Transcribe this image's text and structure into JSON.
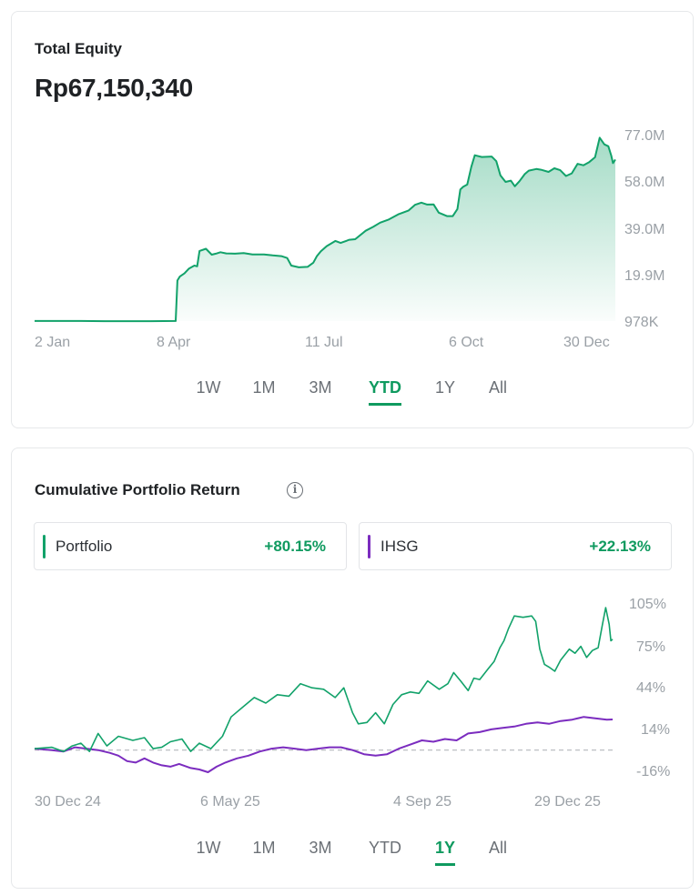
{
  "equity_card": {
    "title": "Total Equity",
    "value": "Rp67,150,340",
    "tabs": [
      "1W",
      "1M",
      "3M",
      "YTD",
      "1Y",
      "All"
    ],
    "active_tab": "YTD"
  },
  "return_card": {
    "title": "Cumulative Portfolio Return",
    "info_icon": "info-icon",
    "legend": [
      {
        "name": "Portfolio",
        "value": "+80.15%",
        "color": "#12a26a"
      },
      {
        "name": "IHSG",
        "value": "+22.13%",
        "color": "#7b2cbf"
      }
    ],
    "tabs": [
      "1W",
      "1M",
      "3M",
      "YTD",
      "1Y",
      "All"
    ],
    "active_tab": "1Y"
  },
  "colors": {
    "accent": "#0f9a5f",
    "line_green": "#12a26a",
    "ihsg_purple": "#7b2cbf"
  },
  "chart_data": [
    {
      "type": "area",
      "title": "Total Equity",
      "x_ticks": [
        "2 Jan",
        "8 Apr",
        "11 Jul",
        "6 Oct",
        "30 Dec"
      ],
      "y_ticks": [
        "77.0M",
        "58.0M",
        "39.0M",
        "19.9M",
        "978K"
      ],
      "y_unit": "Rp",
      "ylim": [
        978000,
        77000000
      ],
      "x_range": [
        0,
        100
      ],
      "tick_positions": [
        0,
        25.2,
        46.6,
        74.1,
        100
      ],
      "series": [
        {
          "values": [
            [
              0,
              1.0
            ],
            [
              4,
              1.0
            ],
            [
              8,
              1.0
            ],
            [
              12,
              0.95
            ],
            [
              16,
              0.95
            ],
            [
              20,
              0.95
            ],
            [
              24.3,
              1.0
            ],
            [
              24.6,
              17.6
            ],
            [
              25,
              19.2
            ],
            [
              25.8,
              20.5
            ],
            [
              26.6,
              22.5
            ],
            [
              27.5,
              23.7
            ],
            [
              28,
              23.4
            ],
            [
              28.4,
              29.7
            ],
            [
              29.5,
              30.6
            ],
            [
              30.5,
              28.2
            ],
            [
              31.2,
              28.6
            ],
            [
              32,
              29.2
            ],
            [
              33,
              28.7
            ],
            [
              34.5,
              28.6
            ],
            [
              36,
              28.8
            ],
            [
              37.5,
              28.3
            ],
            [
              39.5,
              28.3
            ],
            [
              41,
              27.9
            ],
            [
              42.5,
              27.6
            ],
            [
              43.5,
              26.8
            ],
            [
              44.2,
              23.7
            ],
            [
              45.5,
              23.0
            ],
            [
              47,
              23.2
            ],
            [
              48,
              24.9
            ],
            [
              48.6,
              27.6
            ],
            [
              49.3,
              29.6
            ],
            [
              50.3,
              31.7
            ],
            [
              51.8,
              33.8
            ],
            [
              52.7,
              33.0
            ],
            [
              54.2,
              34.3
            ],
            [
              55.2,
              34.5
            ],
            [
              57,
              38.0
            ],
            [
              58.3,
              39.6
            ],
            [
              59.5,
              41.3
            ],
            [
              61,
              42.6
            ],
            [
              62.6,
              44.7
            ],
            [
              64.4,
              46.3
            ],
            [
              65.5,
              48.6
            ],
            [
              66.6,
              49.5
            ],
            [
              67.6,
              48.7
            ],
            [
              68.7,
              48.8
            ],
            [
              69.6,
              45.4
            ],
            [
              71,
              44.0
            ],
            [
              72,
              44.0
            ],
            [
              72.8,
              46.9
            ],
            [
              73.3,
              54.9
            ],
            [
              73.8,
              56.0
            ],
            [
              74.5,
              56.9
            ],
            [
              75.2,
              64.2
            ],
            [
              75.8,
              68.9
            ],
            [
              77,
              68.2
            ],
            [
              78.7,
              68.4
            ],
            [
              79.5,
              66.5
            ],
            [
              80.2,
              60.7
            ],
            [
              81.1,
              58.0
            ],
            [
              82,
              58.5
            ],
            [
              82.7,
              56.2
            ],
            [
              83.5,
              58.3
            ],
            [
              84.4,
              61.2
            ],
            [
              85.1,
              62.6
            ],
            [
              86.4,
              63.3
            ],
            [
              87.2,
              63.0
            ],
            [
              88.5,
              62.1
            ],
            [
              89.5,
              63.6
            ],
            [
              90.5,
              62.8
            ],
            [
              91.5,
              60.4
            ],
            [
              92.5,
              61.5
            ],
            [
              93.5,
              65.4
            ],
            [
              94.5,
              64.8
            ],
            [
              95.5,
              66.1
            ],
            [
              96.5,
              68.1
            ],
            [
              97.3,
              76.1
            ],
            [
              98.1,
              73.4
            ],
            [
              98.8,
              72.6
            ],
            [
              99.3,
              68.8
            ],
            [
              99.6,
              65.7
            ],
            [
              100,
              67.15
            ]
          ]
        }
      ]
    },
    {
      "type": "line",
      "title": "Cumulative Portfolio Return",
      "x_ticks": [
        "30 Dec 24",
        "6 May 25",
        "4 Sep 25",
        "29 Dec 25"
      ],
      "y_ticks": [
        "105%",
        "75%",
        "44%",
        "14%",
        "-16%"
      ],
      "y_unit": "%",
      "ylim": [
        -16,
        105
      ],
      "x_range": [
        0,
        100
      ],
      "tick_positions": [
        0,
        34.4,
        67.3,
        100
      ],
      "zero_baseline": 0,
      "series": [
        {
          "name": "Portfolio",
          "color": "#12a26a",
          "values": [
            [
              0,
              1
            ],
            [
              3,
              2
            ],
            [
              5,
              -1
            ],
            [
              6.5,
              3
            ],
            [
              8,
              5
            ],
            [
              9.5,
              -1
            ],
            [
              11,
              12
            ],
            [
              12.5,
              3
            ],
            [
              14.5,
              10
            ],
            [
              17,
              7
            ],
            [
              19,
              9
            ],
            [
              20.5,
              1
            ],
            [
              22,
              2
            ],
            [
              23.5,
              6
            ],
            [
              25.5,
              8
            ],
            [
              27,
              -1
            ],
            [
              28.5,
              5
            ],
            [
              30.5,
              1
            ],
            [
              32.5,
              10
            ],
            [
              34,
              24
            ],
            [
              36,
              31
            ],
            [
              38,
              38
            ],
            [
              40,
              34
            ],
            [
              42,
              40
            ],
            [
              44,
              39
            ],
            [
              46,
              48
            ],
            [
              48,
              45
            ],
            [
              50,
              44
            ],
            [
              52,
              38
            ],
            [
              53.5,
              45
            ],
            [
              55,
              27
            ],
            [
              56,
              19
            ],
            [
              57.5,
              20
            ],
            [
              59,
              27
            ],
            [
              60.5,
              19
            ],
            [
              62,
              33
            ],
            [
              63.5,
              40
            ],
            [
              65,
              42
            ],
            [
              66.5,
              41
            ],
            [
              68,
              50
            ],
            [
              70,
              44
            ],
            [
              71.5,
              48
            ],
            [
              72.5,
              56
            ],
            [
              73.7,
              50
            ],
            [
              75,
              43
            ],
            [
              76,
              52
            ],
            [
              77,
              51
            ],
            [
              78.5,
              59
            ],
            [
              79.5,
              64
            ],
            [
              80.5,
              74
            ],
            [
              81.2,
              79
            ],
            [
              82,
              88
            ],
            [
              83,
              97
            ],
            [
              84.5,
              96
            ],
            [
              86,
              97
            ],
            [
              86.7,
              93
            ],
            [
              87.4,
              73
            ],
            [
              88.2,
              62
            ],
            [
              89,
              60
            ],
            [
              90,
              57
            ],
            [
              91,
              65
            ],
            [
              92.5,
              73
            ],
            [
              93.5,
              70
            ],
            [
              94.5,
              75
            ],
            [
              95.5,
              67
            ],
            [
              96.5,
              72
            ],
            [
              97.5,
              74
            ],
            [
              98.2,
              90
            ],
            [
              98.8,
              103
            ],
            [
              99.4,
              91
            ],
            [
              99.7,
              79
            ],
            [
              100,
              80.15
            ]
          ]
        },
        {
          "name": "IHSG",
          "color": "#7b2cbf",
          "values": [
            [
              0,
              1
            ],
            [
              3,
              0
            ],
            [
              5,
              -1
            ],
            [
              7,
              2
            ],
            [
              9,
              1
            ],
            [
              11,
              0
            ],
            [
              13,
              -2
            ],
            [
              14.5,
              -4
            ],
            [
              16,
              -8
            ],
            [
              17.5,
              -9
            ],
            [
              19,
              -6
            ],
            [
              20.5,
              -9
            ],
            [
              22,
              -11
            ],
            [
              23.5,
              -12
            ],
            [
              25,
              -10
            ],
            [
              27,
              -13
            ],
            [
              28.5,
              -14
            ],
            [
              30,
              -16
            ],
            [
              31.5,
              -12
            ],
            [
              33,
              -9
            ],
            [
              35,
              -6
            ],
            [
              37,
              -4
            ],
            [
              39,
              -1
            ],
            [
              41,
              1
            ],
            [
              43,
              2
            ],
            [
              45,
              1
            ],
            [
              47,
              0
            ],
            [
              49,
              1
            ],
            [
              51,
              2
            ],
            [
              53,
              2
            ],
            [
              55,
              0
            ],
            [
              57,
              -3
            ],
            [
              59,
              -4
            ],
            [
              61,
              -3
            ],
            [
              63,
              1
            ],
            [
              65,
              4
            ],
            [
              67,
              7
            ],
            [
              69,
              6
            ],
            [
              71,
              8
            ],
            [
              73,
              7
            ],
            [
              75,
              12
            ],
            [
              77,
              13
            ],
            [
              79,
              15
            ],
            [
              81,
              16
            ],
            [
              83,
              17
            ],
            [
              85,
              19
            ],
            [
              87,
              20
            ],
            [
              89,
              19
            ],
            [
              91,
              21
            ],
            [
              93,
              22
            ],
            [
              95,
              24
            ],
            [
              97,
              23
            ],
            [
              99,
              22
            ],
            [
              100,
              22.13
            ]
          ]
        }
      ]
    }
  ]
}
